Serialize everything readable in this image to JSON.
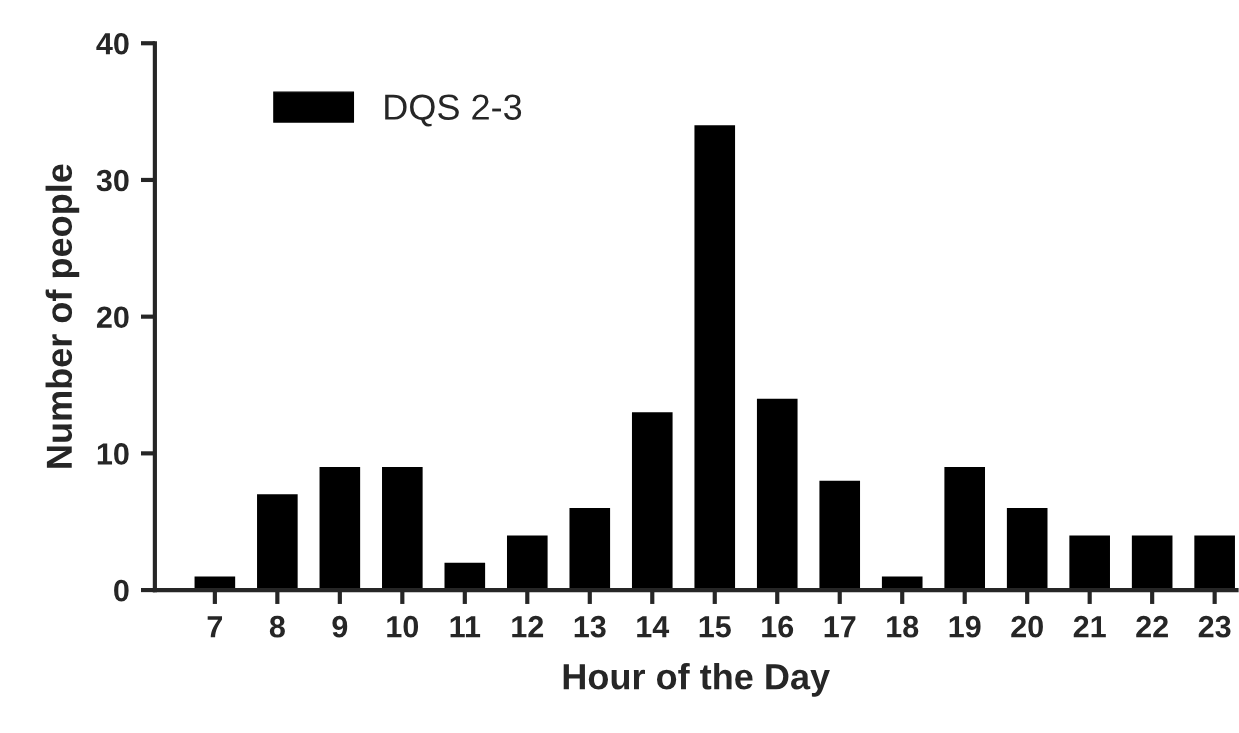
{
  "chart_data": {
    "type": "bar",
    "xlabel": "Hour of the Day",
    "ylabel": "Number of people",
    "categories": [
      "7",
      "8",
      "9",
      "10",
      "11",
      "12",
      "13",
      "14",
      "15",
      "16",
      "17",
      "18",
      "19",
      "20",
      "21",
      "22",
      "23"
    ],
    "series": [
      {
        "name": "DQS 2-3",
        "color": "#000000",
        "values": [
          1,
          7,
          9,
          9,
          2,
          4,
          6,
          13,
          34,
          14,
          8,
          1,
          9,
          6,
          4,
          4,
          4
        ]
      }
    ],
    "ylim": [
      0,
      40
    ],
    "yticks": [
      0,
      10,
      20,
      30,
      40
    ],
    "grid": false,
    "legend": "top left"
  }
}
